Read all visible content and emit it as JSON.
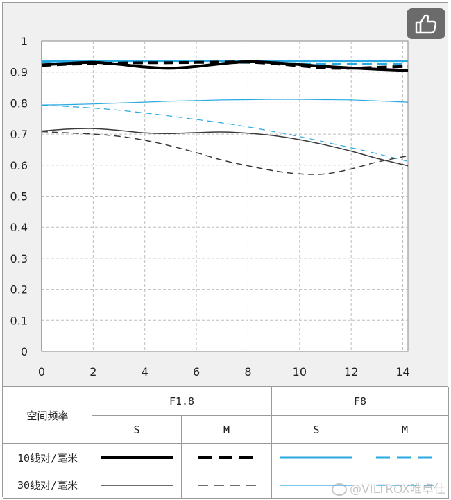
{
  "ui": {
    "like_icon": "thumbs-up-icon",
    "watermark": "@VILTROX唯卓仕"
  },
  "chart_data": {
    "type": "line",
    "title": "",
    "xlabel": "",
    "ylabel": "",
    "xlim": [
      0,
      14.2
    ],
    "ylim": [
      0,
      1
    ],
    "xticks": [
      0,
      2,
      4,
      6,
      8,
      10,
      12,
      14
    ],
    "yticks": [
      0,
      0.1,
      0.2,
      0.3,
      0.4,
      0.5,
      0.6,
      0.7,
      0.8,
      0.9,
      1
    ],
    "grid": true,
    "x": [
      0,
      1,
      2,
      3,
      4,
      5,
      6,
      7,
      8,
      9,
      10,
      11,
      12,
      13,
      14.2
    ],
    "series": [
      {
        "aperture": "F1.8",
        "direction": "S",
        "frequency": "10线对/毫米",
        "color": "#000000",
        "dash": "solid",
        "width": 4.0,
        "values": [
          0.923,
          0.928,
          0.931,
          0.925,
          0.916,
          0.912,
          0.918,
          0.927,
          0.933,
          0.93,
          0.924,
          0.918,
          0.913,
          0.909,
          0.905
        ]
      },
      {
        "aperture": "F1.8",
        "direction": "M",
        "frequency": "10线对/毫米",
        "color": "#000000",
        "dash": "dashed",
        "width": 4.0,
        "values": [
          0.921,
          0.925,
          0.927,
          0.929,
          0.93,
          0.93,
          0.931,
          0.932,
          0.932,
          0.927,
          0.92,
          0.913,
          0.912,
          0.915,
          0.918
        ]
      },
      {
        "aperture": "F8",
        "direction": "S",
        "frequency": "10线对/毫米",
        "color": "#29a9e0",
        "dash": "solid",
        "width": 3.0,
        "values": [
          0.935,
          0.935,
          0.936,
          0.936,
          0.936,
          0.936,
          0.936,
          0.936,
          0.936,
          0.936,
          0.936,
          0.936,
          0.936,
          0.936,
          0.936
        ]
      },
      {
        "aperture": "F8",
        "direction": "M",
        "frequency": "10线对/毫米",
        "color": "#29a9e0",
        "dash": "dashed",
        "width": 3.0,
        "values": [
          0.934,
          0.934,
          0.934,
          0.933,
          0.933,
          0.932,
          0.932,
          0.931,
          0.93,
          0.929,
          0.928,
          0.927,
          0.927,
          0.926,
          0.926
        ]
      },
      {
        "aperture": "F1.8",
        "direction": "S",
        "frequency": "30线对/毫米",
        "color": "#3a3a3a",
        "dash": "solid",
        "width": 1.5,
        "values": [
          0.71,
          0.716,
          0.718,
          0.712,
          0.704,
          0.702,
          0.705,
          0.707,
          0.703,
          0.695,
          0.682,
          0.665,
          0.645,
          0.622,
          0.598
        ]
      },
      {
        "aperture": "F1.8",
        "direction": "M",
        "frequency": "30线对/毫米",
        "color": "#3a3a3a",
        "dash": "dashed",
        "width": 1.5,
        "values": [
          0.708,
          0.704,
          0.7,
          0.693,
          0.68,
          0.662,
          0.64,
          0.616,
          0.598,
          0.582,
          0.572,
          0.572,
          0.588,
          0.61,
          0.63
        ]
      },
      {
        "aperture": "F8",
        "direction": "S",
        "frequency": "30线对/毫米",
        "color": "#29a9e0",
        "dash": "solid",
        "width": 1.2,
        "values": [
          0.794,
          0.795,
          0.797,
          0.8,
          0.803,
          0.806,
          0.808,
          0.81,
          0.811,
          0.812,
          0.812,
          0.811,
          0.81,
          0.807,
          0.803
        ]
      },
      {
        "aperture": "F8",
        "direction": "M",
        "frequency": "30线对/毫米",
        "color": "#29a9e0",
        "dash": "dashed",
        "width": 1.2,
        "values": [
          0.793,
          0.789,
          0.784,
          0.777,
          0.768,
          0.758,
          0.747,
          0.736,
          0.723,
          0.708,
          0.692,
          0.674,
          0.656,
          0.637,
          0.612
        ]
      }
    ]
  },
  "legend": {
    "corner_label": "空间频率",
    "apertures": [
      "F1.8",
      "F8"
    ],
    "directions": [
      "S",
      "M",
      "S",
      "M"
    ],
    "rows": [
      {
        "label": "10线对/毫米"
      },
      {
        "label": "30线对/毫米"
      }
    ]
  }
}
